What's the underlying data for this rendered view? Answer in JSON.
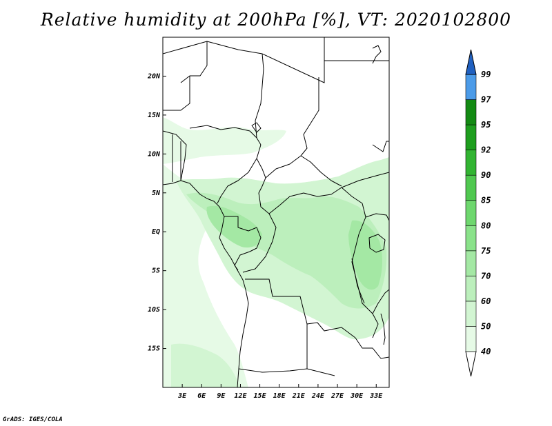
{
  "title": "Relative humidity at 200hPa [%], VT: 2020102800",
  "credit": "GrADS: IGES/COLA",
  "map": {
    "lon_range": [
      0,
      35
    ],
    "lat_range": [
      -20,
      25
    ],
    "lon_ticks": [
      {
        "value": 3,
        "label": "3E"
      },
      {
        "value": 6,
        "label": "6E"
      },
      {
        "value": 9,
        "label": "9E"
      },
      {
        "value": 12,
        "label": "12E"
      },
      {
        "value": 15,
        "label": "15E"
      },
      {
        "value": 18,
        "label": "18E"
      },
      {
        "value": 21,
        "label": "21E"
      },
      {
        "value": 24,
        "label": "24E"
      },
      {
        "value": 27,
        "label": "27E"
      },
      {
        "value": 30,
        "label": "30E"
      },
      {
        "value": 33,
        "label": "33E"
      }
    ],
    "lat_ticks": [
      {
        "value": 20,
        "label": "20N"
      },
      {
        "value": 15,
        "label": "15N"
      },
      {
        "value": 10,
        "label": "10N"
      },
      {
        "value": 5,
        "label": "5N"
      },
      {
        "value": 0,
        "label": "EQ"
      },
      {
        "value": -5,
        "label": "5S"
      },
      {
        "value": -10,
        "label": "10S"
      },
      {
        "value": -15,
        "label": "15S"
      }
    ]
  },
  "colorbar": {
    "levels": [
      {
        "label": "40",
        "color": "#e6fae6"
      },
      {
        "label": "50",
        "color": "#d2f5d2"
      },
      {
        "label": "60",
        "color": "#bcefbc"
      },
      {
        "label": "70",
        "color": "#a4e8a4"
      },
      {
        "label": "75",
        "color": "#8ae28a"
      },
      {
        "label": "80",
        "color": "#6ed76e"
      },
      {
        "label": "85",
        "color": "#50c850"
      },
      {
        "label": "90",
        "color": "#32b432"
      },
      {
        "label": "92",
        "color": "#1e9e1e"
      },
      {
        "label": "95",
        "color": "#138a13"
      },
      {
        "label": "97",
        "color": "#4c9be8"
      },
      {
        "label": "99",
        "color": "#2a78d6"
      }
    ],
    "top_color": "#2060c0",
    "bottom_color": "#ffffff"
  }
}
